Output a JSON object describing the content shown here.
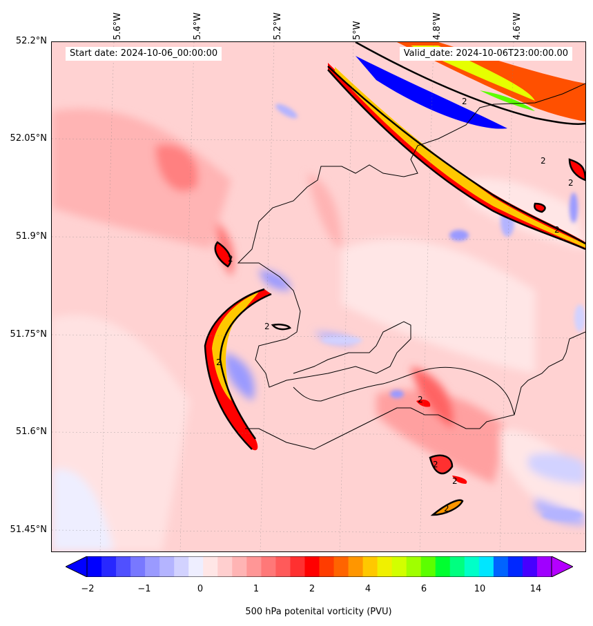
{
  "map": {
    "start_date": "Start date: 2024-10-06_00:00:00",
    "valid_date": "Valid_date: 2024-10-06T23:00:00.00",
    "longitude_labels": [
      "5.6°W",
      "5.4°W",
      "5.2°W",
      "5°W",
      "4.8°W",
      "4.6°W"
    ],
    "latitude_labels": [
      "52.2°N",
      "52.05°N",
      "51.9°N",
      "51.75°N",
      "51.6°N",
      "51.45°N"
    ],
    "contour_label": "2"
  },
  "colorbar": {
    "title": "500 hPa potenital vorticity (PVU)",
    "tick_labels": [
      "−2",
      "−1",
      "0",
      "1",
      "2",
      "4",
      "6",
      "10",
      "14"
    ],
    "colors": [
      "#0000ff",
      "#2828ff",
      "#5050ff",
      "#7878ff",
      "#9a9aff",
      "#b4b4ff",
      "#d2d2ff",
      "#eeeeff",
      "#ffe6e6",
      "#ffcfcf",
      "#ffb4b4",
      "#ff9696",
      "#ff7878",
      "#ff5a5a",
      "#ff3030",
      "#ff0000",
      "#ff3c00",
      "#ff6400",
      "#ff9600",
      "#ffc800",
      "#f0f000",
      "#d2ff00",
      "#a0ff00",
      "#5cff00",
      "#00ff30",
      "#00ff80",
      "#00ffc8",
      "#00e6ff",
      "#0064ff",
      "#0028ff",
      "#4600ff",
      "#a000ff"
    ],
    "under_color": "#0000ff",
    "over_color": "#b400ff"
  }
}
